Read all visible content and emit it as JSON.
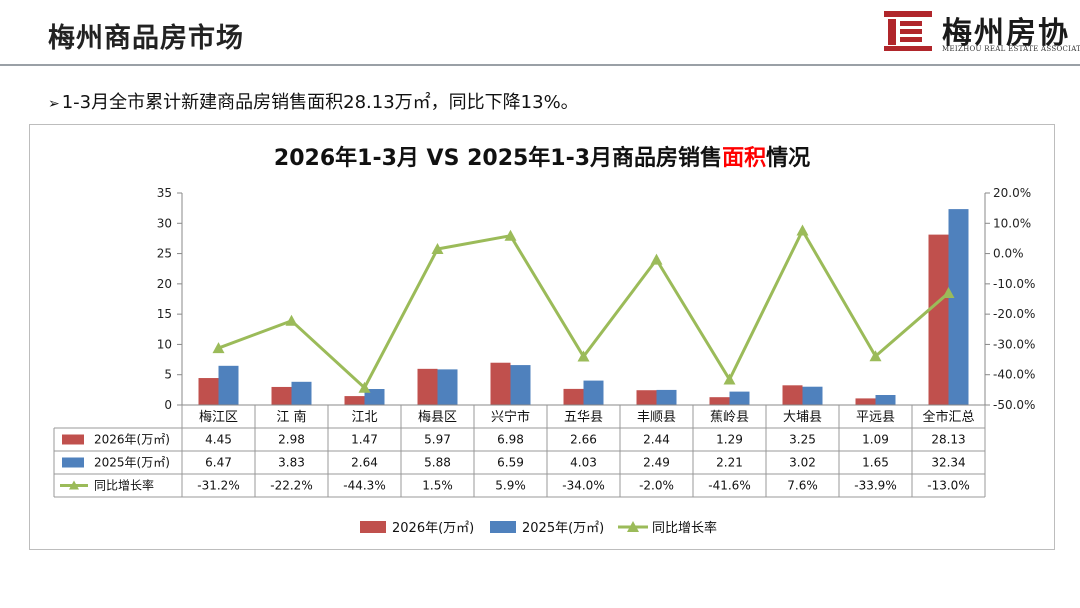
{
  "header": {
    "title": "梅州商品房市场",
    "logo_main": "梅州房协",
    "logo_sub": "MEIZHOU REAL ESTATE ASSOCIATION",
    "logo_color": "#b0262b"
  },
  "bullet": {
    "text": "1-3月全市累计新建商品房销售面积28.13万㎡，同比下降13%。"
  },
  "chart_data": {
    "type": "bar",
    "title_pre": "2026年1-3月 VS 2025年1-3月商品房销售",
    "title_highlight": "面积",
    "title_post": "情况",
    "title_highlight_color": "#ff0000",
    "categories": [
      "梅江区",
      "江 南",
      "江北",
      "梅县区",
      "兴宁市",
      "五华县",
      "丰顺县",
      "蕉岭县",
      "大埔县",
      "平远县",
      "全市汇总"
    ],
    "series": [
      {
        "name": "2026年(万㎡)",
        "values": [
          4.45,
          2.98,
          1.47,
          5.97,
          6.98,
          2.66,
          2.44,
          1.29,
          3.25,
          1.09,
          28.13
        ],
        "color": "#c0504d",
        "axis": "left",
        "kind": "bar"
      },
      {
        "name": "2025年(万㎡)",
        "values": [
          6.47,
          3.83,
          2.64,
          5.88,
          6.59,
          4.03,
          2.49,
          2.21,
          3.02,
          1.65,
          32.34
        ],
        "color": "#4f81bd",
        "axis": "left",
        "kind": "bar"
      },
      {
        "name": "同比增长率",
        "values": [
          -31.2,
          -22.2,
          -44.3,
          1.5,
          5.9,
          -34.0,
          -2.0,
          -41.6,
          7.6,
          -33.9,
          -13.0
        ],
        "color": "#9bbb59",
        "axis": "right",
        "kind": "line"
      }
    ],
    "table_rows": [
      {
        "label": "2026年(万㎡)",
        "cells": [
          "4.45",
          "2.98",
          "1.47",
          "5.97",
          "6.98",
          "2.66",
          "2.44",
          "1.29",
          "3.25",
          "1.09",
          "28.13"
        ]
      },
      {
        "label": "2025年(万㎡)",
        "cells": [
          "6.47",
          "3.83",
          "2.64",
          "5.88",
          "6.59",
          "4.03",
          "2.49",
          "2.21",
          "3.02",
          "1.65",
          "32.34"
        ]
      },
      {
        "label": "同比增长率",
        "cells": [
          "-31.2%",
          "-22.2%",
          "-44.3%",
          "1.5%",
          "5.9%",
          "-34.0%",
          "-2.0%",
          "-41.6%",
          "7.6%",
          "-33.9%",
          "-13.0%"
        ]
      }
    ],
    "y_left": {
      "min": 0,
      "max": 35,
      "ticks": [
        "0",
        "5",
        "10",
        "15",
        "20",
        "25",
        "30",
        "35"
      ]
    },
    "y_right": {
      "min": -50,
      "max": 20,
      "ticks": [
        "-50.0%",
        "-40.0%",
        "-30.0%",
        "-20.0%",
        "-10.0%",
        "0.0%",
        "10.0%",
        "20.0%"
      ]
    },
    "legend": [
      "2026年(万㎡)",
      "2025年(万㎡)",
      "同比增长率"
    ],
    "legend_position": "bottom"
  }
}
